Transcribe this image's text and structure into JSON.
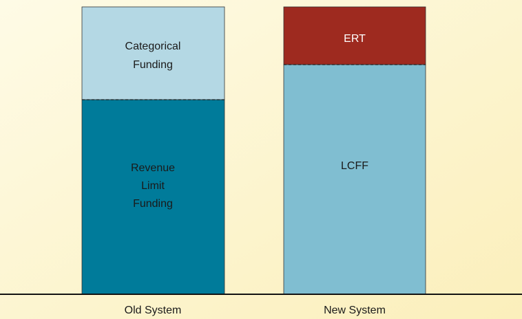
{
  "bars": [
    {
      "label": "Old System",
      "segments": [
        {
          "label_lines": [
            "Categorical",
            "Funding"
          ]
        },
        {
          "label_lines": [
            "Revenue",
            "Limit",
            "Funding"
          ]
        }
      ]
    },
    {
      "label": "New System",
      "segments": [
        {
          "label_lines": [
            "ERT"
          ]
        },
        {
          "label_lines": [
            "LCFF"
          ]
        }
      ]
    }
  ]
}
